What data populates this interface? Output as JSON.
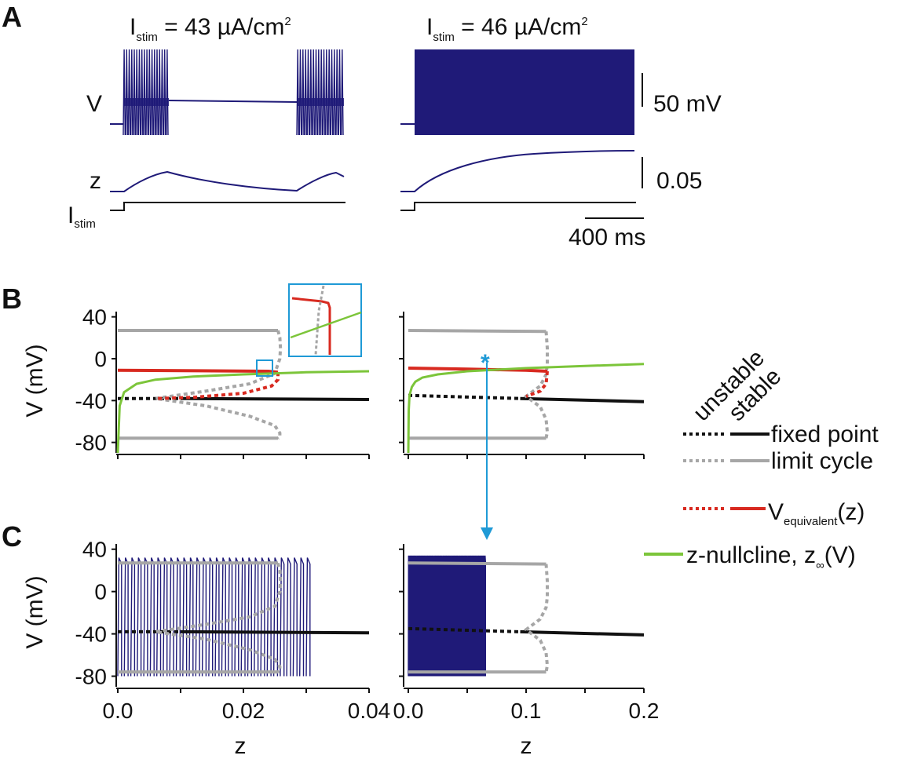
{
  "figure": {
    "panel_letters": [
      "A",
      "B",
      "C"
    ],
    "colors": {
      "voltage_trace": "#1f1a78",
      "fixed_point": "#111111",
      "limit_cycle": "#a6a6a6",
      "v_equivalent": "#d82a20",
      "z_nullcline": "#7cc53a",
      "annotation": "#1f9ad6"
    }
  },
  "panel_a": {
    "left_title": {
      "prefix": "I",
      "sub": "stim",
      "rest": " = 43 ",
      "mu": "µ",
      "unit": "A/cm",
      "sup": "2"
    },
    "right_title": {
      "prefix": "I",
      "sub": "stim",
      "rest": " = 46 ",
      "mu": "µ",
      "unit": "A/cm",
      "sup": "2"
    },
    "row_labels": {
      "v": "V",
      "z": "z",
      "istim_main": "I",
      "istim_sub": "stim"
    },
    "scale_bars": {
      "voltage": "50 mV",
      "z": "0.05",
      "time": "400 ms"
    }
  },
  "legend": {
    "header_unstable": "unstable",
    "header_stable": "stable",
    "items": [
      {
        "label": "fixed point"
      },
      {
        "label": "limit cycle"
      },
      {
        "label_main": "V",
        "label_sub": "equivalent",
        "label_tail": "(z)"
      },
      {
        "label_main": "z-nullcline, z",
        "label_sub": "∞",
        "label_tail": "(V)"
      }
    ]
  },
  "annotation": {
    "marker": "*"
  },
  "chart_data": [
    {
      "id": "B-left",
      "type": "line",
      "ylabel": "V (mV)",
      "xlim": [
        0,
        0.04
      ],
      "ylim": [
        -90,
        45
      ],
      "yticks": [
        "40",
        "0",
        "-40",
        "-80"
      ],
      "ytick_values": [
        40,
        0,
        -40,
        -80
      ],
      "series": [
        {
          "name": "fixed point",
          "style": "unstable",
          "x": [
            0.0,
            0.01
          ],
          "y": [
            -38,
            -38
          ]
        },
        {
          "name": "fixed point",
          "style": "stable",
          "x": [
            0.01,
            0.04
          ],
          "y": [
            -38,
            -39
          ]
        },
        {
          "name": "limit cycle",
          "style": "stable",
          "x": [
            0.0,
            0.0255
          ],
          "y": [
            27,
            27
          ]
        },
        {
          "name": "limit cycle",
          "style": "stable",
          "x": [
            0.0,
            0.0255
          ],
          "y": [
            -76,
            -76
          ]
        },
        {
          "name": "limit cycle",
          "style": "unstable",
          "x": [
            0.0255,
            0.0258,
            0.0259,
            0.0258,
            0.025,
            0.021,
            0.014,
            0.006,
            0.014,
            0.021,
            0.025,
            0.0258,
            0.0258,
            0.0255
          ],
          "y": [
            27,
            20,
            10,
            0,
            -14,
            -24,
            -31,
            -38,
            -45,
            -55,
            -64,
            -71,
            -75,
            -76
          ]
        },
        {
          "name": "V_equivalent",
          "style": "stable",
          "x": [
            0.0,
            0.024,
            0.0255
          ],
          "y": [
            -11,
            -12,
            -13
          ]
        },
        {
          "name": "V_equivalent",
          "style": "unstable",
          "x": [
            0.0255,
            0.0255,
            0.0245,
            0.02,
            0.012,
            0.006
          ],
          "y": [
            -13,
            -20,
            -26,
            -33,
            -37,
            -38
          ]
        },
        {
          "name": "z-nullcline",
          "style": "stable",
          "x": [
            0.0,
            0.0003,
            0.001,
            0.003,
            0.006,
            0.012,
            0.02,
            0.03,
            0.04
          ],
          "y": [
            -90,
            -45,
            -32,
            -24,
            -20,
            -17,
            -15,
            -13,
            -12
          ]
        }
      ]
    },
    {
      "id": "B-right",
      "type": "line",
      "ylabel": "",
      "xlim": [
        0,
        0.2
      ],
      "ylim": [
        -90,
        45
      ],
      "series": [
        {
          "name": "fixed point",
          "style": "unstable",
          "x": [
            0.0,
            0.095
          ],
          "y": [
            -35,
            -38
          ]
        },
        {
          "name": "fixed point",
          "style": "stable",
          "x": [
            0.095,
            0.2
          ],
          "y": [
            -38,
            -41
          ]
        },
        {
          "name": "limit cycle",
          "style": "stable",
          "x": [
            0.0,
            0.117
          ],
          "y": [
            27,
            26
          ]
        },
        {
          "name": "limit cycle",
          "style": "stable",
          "x": [
            0.0,
            0.117
          ],
          "y": [
            -76,
            -76
          ]
        },
        {
          "name": "limit cycle",
          "style": "unstable",
          "x": [
            0.117,
            0.118,
            0.118,
            0.117,
            0.112,
            0.1,
            0.112,
            0.117,
            0.118,
            0.117
          ],
          "y": [
            26,
            10,
            -5,
            -15,
            -26,
            -36,
            -46,
            -58,
            -70,
            -76
          ]
        },
        {
          "name": "V_equivalent",
          "style": "stable",
          "x": [
            0.0,
            0.05,
            0.1,
            0.118
          ],
          "y": [
            -9,
            -10,
            -11,
            -12
          ]
        },
        {
          "name": "V_equivalent",
          "style": "unstable",
          "x": [
            0.118,
            0.117,
            0.112,
            0.1
          ],
          "y": [
            -12,
            -24,
            -31,
            -36
          ]
        },
        {
          "name": "z-nullcline",
          "style": "stable",
          "x": [
            0.0,
            0.0003,
            0.001,
            0.003,
            0.006,
            0.012,
            0.025,
            0.05,
            0.1,
            0.15,
            0.2
          ],
          "y": [
            -90,
            -50,
            -35,
            -27,
            -22,
            -18,
            -15,
            -12,
            -9,
            -7,
            -5
          ]
        }
      ]
    },
    {
      "id": "C-left",
      "type": "line",
      "ylabel": "V (mV)",
      "xlabel": "z",
      "xlim": [
        0,
        0.04
      ],
      "ylim": [
        -90,
        45
      ],
      "xticks": [
        "0.0",
        "0.02",
        "0.04"
      ],
      "xtick_values": [
        0,
        0.02,
        0.04
      ],
      "yticks": [
        "40",
        "0",
        "-40",
        "-80"
      ],
      "ytick_values": [
        40,
        0,
        -40,
        -80
      ],
      "trajectory": {
        "z_range": [
          0.0,
          0.03
        ],
        "v_range": [
          -80,
          32
        ],
        "spikes": 30
      },
      "series": [
        {
          "name": "fixed point",
          "style": "unstable",
          "x": [
            0.0,
            0.01
          ],
          "y": [
            -38,
            -38
          ]
        },
        {
          "name": "fixed point",
          "style": "stable",
          "x": [
            0.01,
            0.04
          ],
          "y": [
            -38,
            -39
          ]
        },
        {
          "name": "limit cycle",
          "style": "stable",
          "x": [
            0.0,
            0.0255
          ],
          "y": [
            27,
            27
          ]
        },
        {
          "name": "limit cycle",
          "style": "stable",
          "x": [
            0.0,
            0.0255
          ],
          "y": [
            -76,
            -76
          ]
        },
        {
          "name": "limit cycle",
          "style": "unstable",
          "x": [
            0.0255,
            0.0258,
            0.0259,
            0.0258,
            0.025,
            0.021,
            0.014,
            0.006,
            0.014,
            0.021,
            0.025,
            0.0258,
            0.0258,
            0.0255
          ],
          "y": [
            27,
            20,
            10,
            0,
            -14,
            -24,
            -31,
            -38,
            -45,
            -55,
            -64,
            -71,
            -75,
            -76
          ]
        }
      ]
    },
    {
      "id": "C-right",
      "type": "line",
      "ylabel": "",
      "xlabel": "z",
      "xlim": [
        0,
        0.2
      ],
      "ylim": [
        -90,
        45
      ],
      "xticks": [
        "0.0",
        "0.1",
        "0.2"
      ],
      "xtick_values": [
        0,
        0.1,
        0.2
      ],
      "trajectory": {
        "z_range": [
          0.0,
          0.065
        ],
        "v_range": [
          -80,
          34
        ],
        "spikes": 70
      },
      "series": [
        {
          "name": "fixed point",
          "style": "unstable",
          "x": [
            0.0,
            0.095
          ],
          "y": [
            -35,
            -38
          ]
        },
        {
          "name": "fixed point",
          "style": "stable",
          "x": [
            0.095,
            0.2
          ],
          "y": [
            -38,
            -41
          ]
        },
        {
          "name": "limit cycle",
          "style": "stable",
          "x": [
            0.0,
            0.117
          ],
          "y": [
            27,
            26
          ]
        },
        {
          "name": "limit cycle",
          "style": "stable",
          "x": [
            0.0,
            0.117
          ],
          "y": [
            -76,
            -76
          ]
        },
        {
          "name": "limit cycle",
          "style": "unstable",
          "x": [
            0.117,
            0.118,
            0.118,
            0.117,
            0.112,
            0.1,
            0.112,
            0.117,
            0.118,
            0.117
          ],
          "y": [
            26,
            10,
            -5,
            -15,
            -26,
            -36,
            -46,
            -58,
            -70,
            -76
          ]
        }
      ]
    }
  ]
}
